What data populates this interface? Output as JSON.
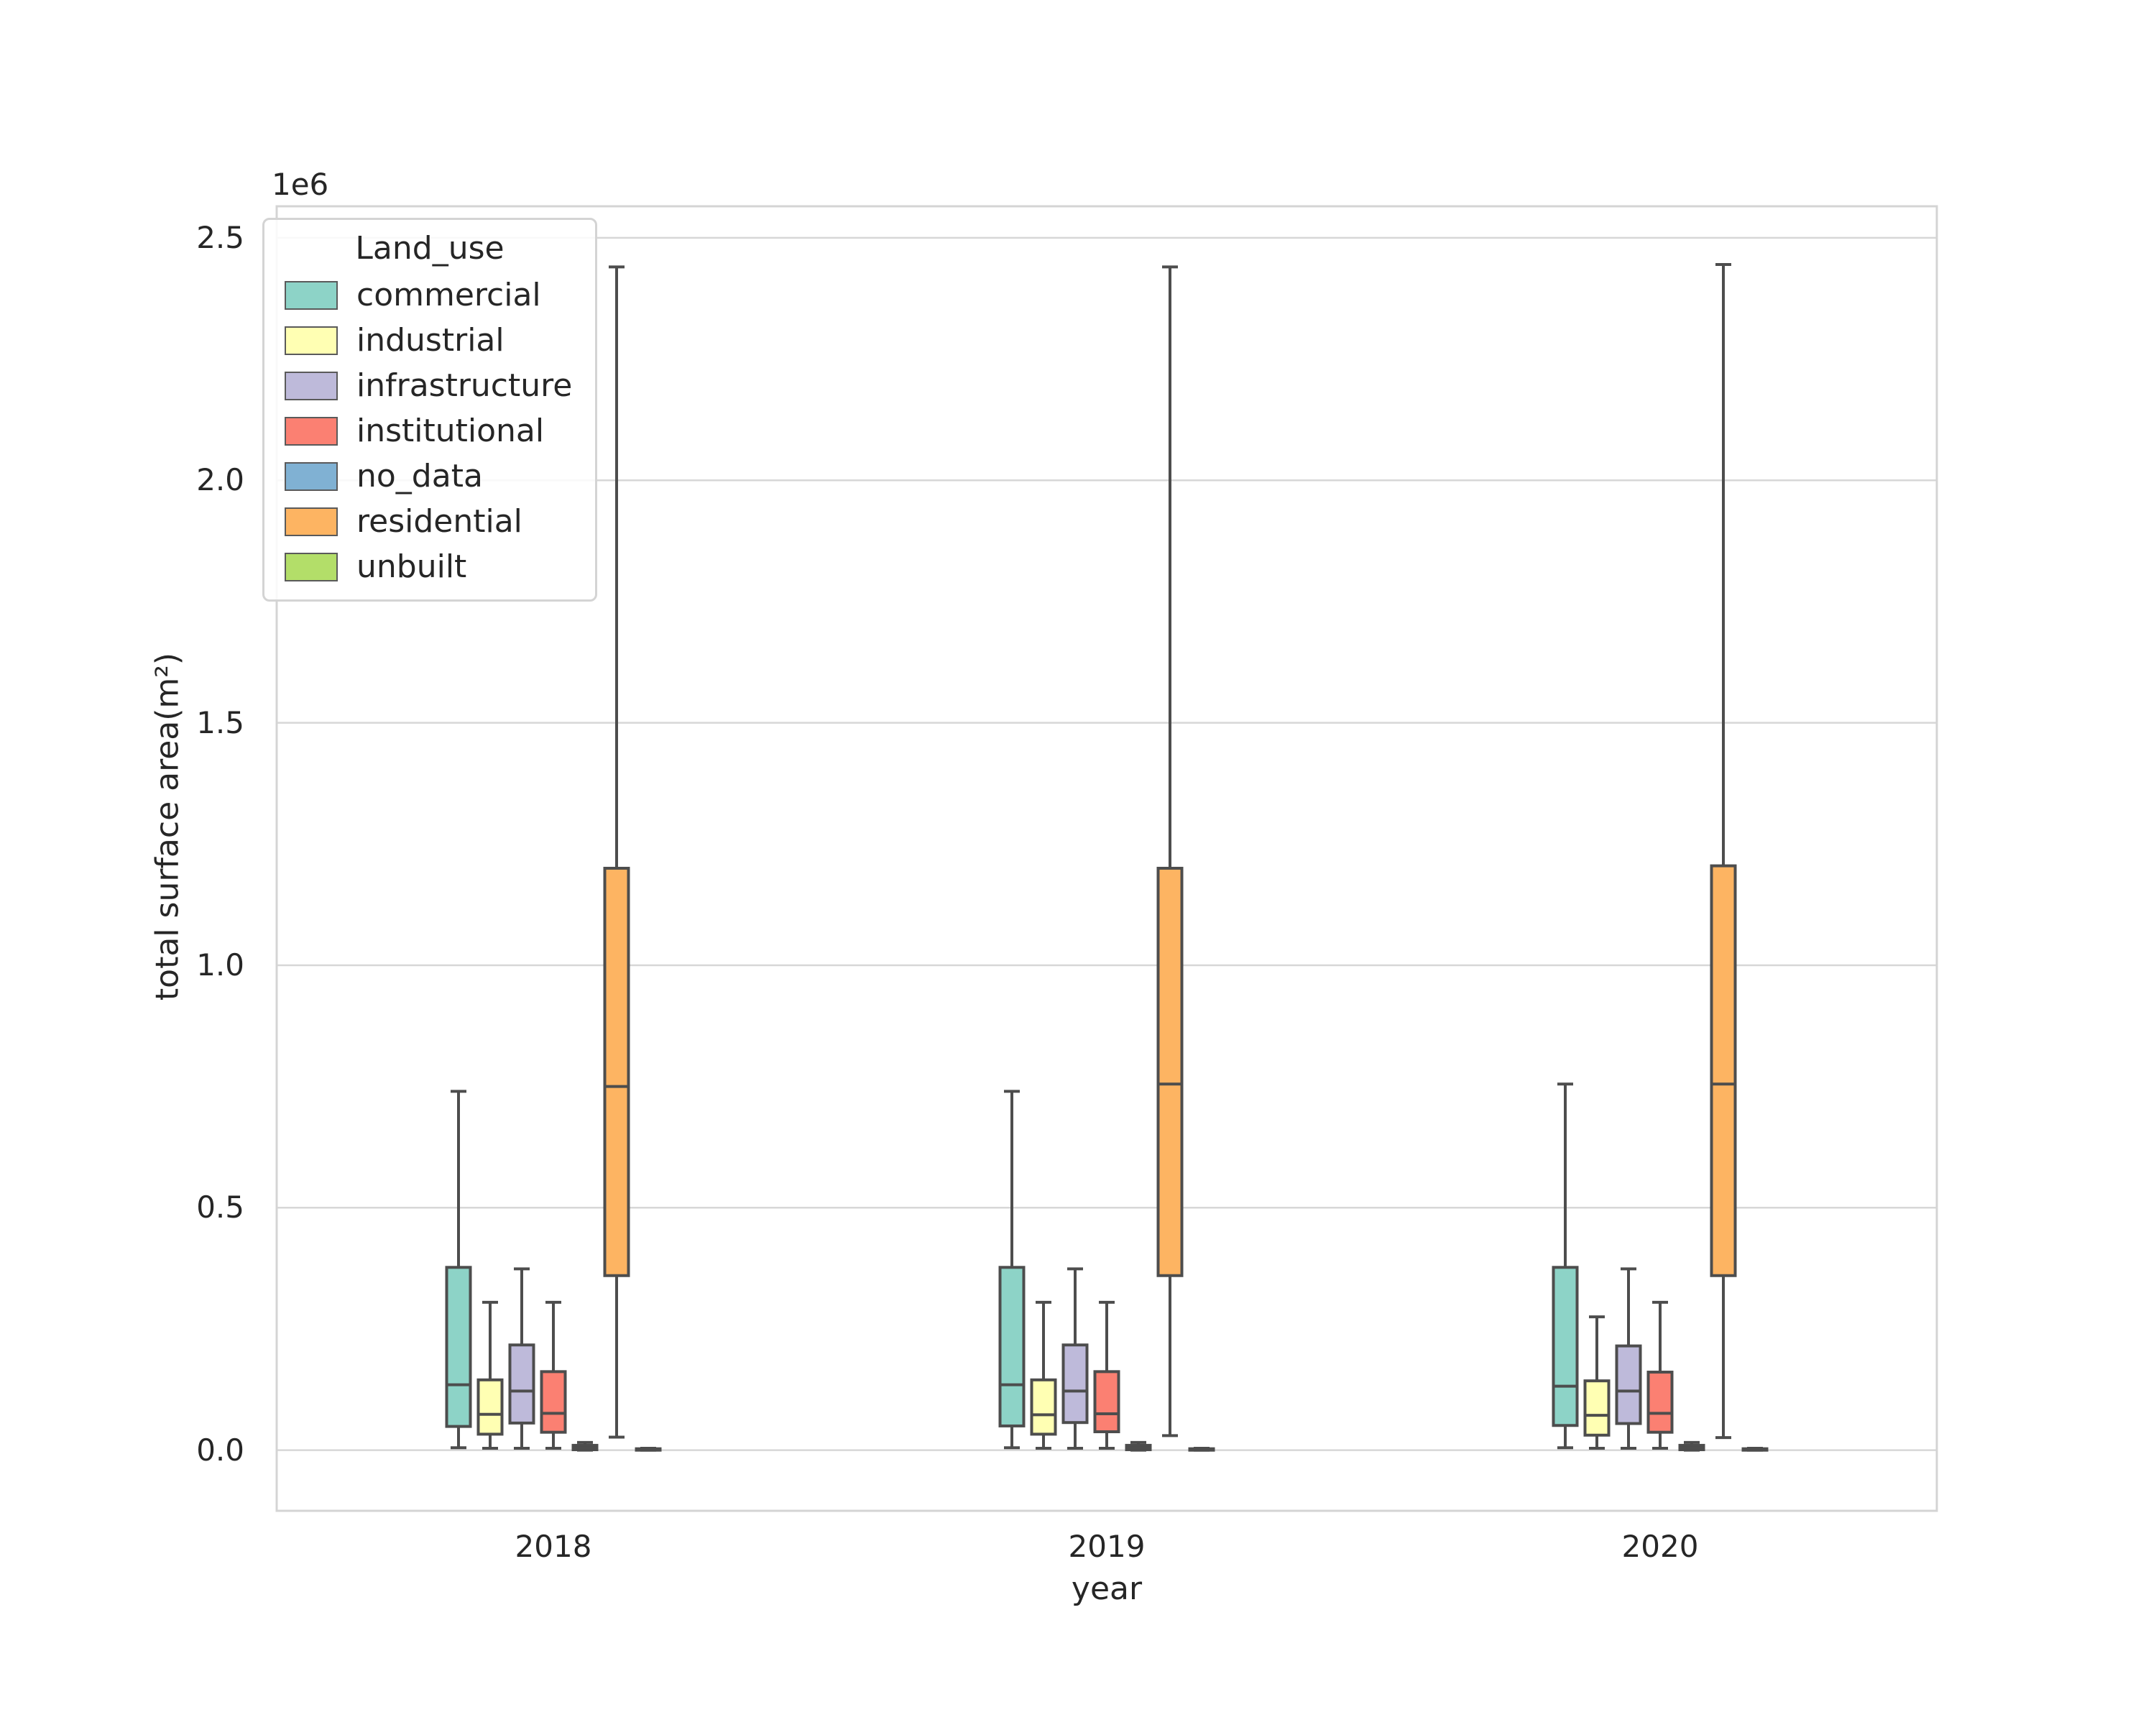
{
  "figure": {
    "offset_label": "1e6",
    "x_axis_label": "year",
    "y_axis_label": "total surface area(m²)",
    "legend_title": "Land_use"
  },
  "style": {
    "grid_color": "#d7d7d7",
    "spine_color": "#d4d4d4",
    "box_edge_color": "#4d4d4d",
    "text_color": "#262626",
    "background": "#ffffff"
  },
  "chart_data": {
    "type": "box",
    "title": "",
    "xlabel": "year",
    "ylabel": "total surface area(m²)",
    "y_offset_text": "1e6",
    "unit": "1e6 m²",
    "categories": [
      "2018",
      "2019",
      "2020"
    ],
    "yticks": [
      0.0,
      0.5,
      1.0,
      1.5,
      2.0,
      2.5
    ],
    "ylim": [
      -0.125,
      2.565
    ],
    "grid": true,
    "legend_title": "Land_use",
    "legend_position": "upper left",
    "series": [
      {
        "name": "commercial",
        "color": "#8dd3c7",
        "boxes": [
          {
            "whislo": 0.005,
            "q1": 0.049,
            "med": 0.135,
            "q3": 0.377,
            "whishi": 0.74
          },
          {
            "whislo": 0.005,
            "q1": 0.05,
            "med": 0.135,
            "q3": 0.377,
            "whishi": 0.74
          },
          {
            "whislo": 0.005,
            "q1": 0.051,
            "med": 0.132,
            "q3": 0.377,
            "whishi": 0.755
          }
        ]
      },
      {
        "name": "industrial",
        "color": "#ffffb3",
        "boxes": [
          {
            "whislo": 0.004,
            "q1": 0.033,
            "med": 0.074,
            "q3": 0.145,
            "whishi": 0.305
          },
          {
            "whislo": 0.004,
            "q1": 0.033,
            "med": 0.073,
            "q3": 0.145,
            "whishi": 0.305
          },
          {
            "whislo": 0.004,
            "q1": 0.031,
            "med": 0.072,
            "q3": 0.143,
            "whishi": 0.275
          }
        ]
      },
      {
        "name": "infrastructure",
        "color": "#bebada",
        "boxes": [
          {
            "whislo": 0.004,
            "q1": 0.056,
            "med": 0.122,
            "q3": 0.217,
            "whishi": 0.374
          },
          {
            "whislo": 0.004,
            "q1": 0.057,
            "med": 0.122,
            "q3": 0.217,
            "whishi": 0.374
          },
          {
            "whislo": 0.004,
            "q1": 0.055,
            "med": 0.122,
            "q3": 0.215,
            "whishi": 0.374
          }
        ]
      },
      {
        "name": "institutional",
        "color": "#fb8072",
        "boxes": [
          {
            "whislo": 0.004,
            "q1": 0.037,
            "med": 0.076,
            "q3": 0.162,
            "whishi": 0.305
          },
          {
            "whislo": 0.004,
            "q1": 0.038,
            "med": 0.075,
            "q3": 0.162,
            "whishi": 0.305
          },
          {
            "whislo": 0.004,
            "q1": 0.037,
            "med": 0.076,
            "q3": 0.161,
            "whishi": 0.305
          }
        ]
      },
      {
        "name": "no_data",
        "color": "#80b1d3",
        "boxes": [
          {
            "whislo": 0.0,
            "q1": 0.001,
            "med": 0.005,
            "q3": 0.01,
            "whishi": 0.016
          },
          {
            "whislo": 0.0,
            "q1": 0.001,
            "med": 0.005,
            "q3": 0.01,
            "whishi": 0.016
          },
          {
            "whislo": 0.0,
            "q1": 0.001,
            "med": 0.005,
            "q3": 0.01,
            "whishi": 0.016
          }
        ]
      },
      {
        "name": "residential",
        "color": "#fdb462",
        "boxes": [
          {
            "whislo": 0.027,
            "q1": 0.36,
            "med": 0.75,
            "q3": 1.2,
            "whishi": 2.44
          },
          {
            "whislo": 0.03,
            "q1": 0.36,
            "med": 0.755,
            "q3": 1.2,
            "whishi": 2.44
          },
          {
            "whislo": 0.026,
            "q1": 0.36,
            "med": 0.755,
            "q3": 1.205,
            "whishi": 2.445
          }
        ]
      },
      {
        "name": "unbuilt",
        "color": "#b3de69",
        "boxes": [
          {
            "whislo": 0.0,
            "q1": 0.0,
            "med": 0.001,
            "q3": 0.003,
            "whishi": 0.004
          },
          {
            "whislo": 0.0,
            "q1": 0.0,
            "med": 0.001,
            "q3": 0.003,
            "whishi": 0.004
          },
          {
            "whislo": 0.0,
            "q1": 0.0,
            "med": 0.001,
            "q3": 0.003,
            "whishi": 0.004
          }
        ]
      }
    ]
  }
}
